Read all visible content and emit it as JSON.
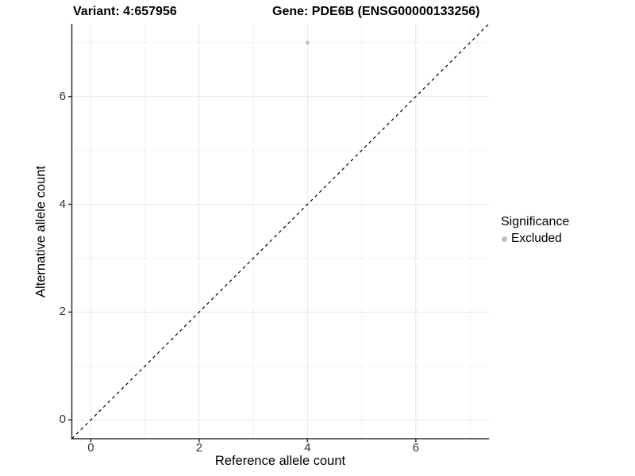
{
  "plot_titles": {
    "variant_title": "Variant: 4:657956",
    "gene_title": "Gene: PDE6B (ENSG00000133256)"
  },
  "axis_titles": {
    "x": "Reference allele count",
    "y": "Alternative allele count"
  },
  "legend": {
    "title": "Significance",
    "items": [
      {
        "label": "Excluded",
        "marker_color": "#bebebe"
      }
    ]
  },
  "chart_data": {
    "type": "scatter",
    "title": "Variant: 4:657956 | Gene: PDE6B (ENSG00000133256)",
    "xlabel": "Reference allele count",
    "ylabel": "Alternative allele count",
    "xlim": [
      -0.35,
      7.35
    ],
    "ylim": [
      -0.35,
      7.35
    ],
    "x_ticks": [
      0,
      2,
      4,
      6
    ],
    "y_ticks": [
      0,
      2,
      4,
      6
    ],
    "minor_grid": [
      1,
      3,
      5,
      7
    ],
    "grid": "on",
    "legend_position": "right",
    "series": [
      {
        "name": "Excluded",
        "color": "#bebebe",
        "points": [
          {
            "x": 4,
            "y": 7
          }
        ]
      }
    ],
    "reference_line": {
      "shape": "y=x diagonal",
      "style": "dashed",
      "color": "#000000",
      "from": [
        -0.35,
        -0.35
      ],
      "to": [
        7.35,
        7.35
      ]
    }
  },
  "colors": {
    "background": "#ffffff",
    "grid_major": "#e6e6e6",
    "grid_minor": "#f2f2f2",
    "axis_line": "#333333",
    "tick_label": "#333333",
    "point": "#bebebe"
  }
}
